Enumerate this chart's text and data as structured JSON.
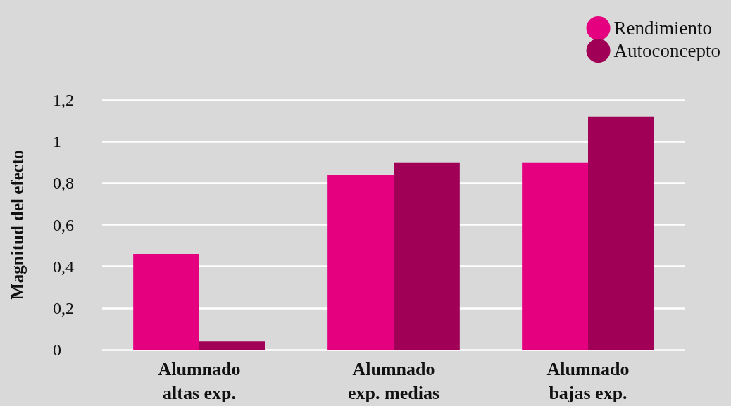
{
  "chart_data": {
    "type": "bar",
    "ylabel": "Magnitud del efecto",
    "categories": [
      "Alumnado\naltas exp.",
      "Alumnado\nexp. medias",
      "Alumnado\nbajas exp."
    ],
    "series": [
      {
        "name": "Rendimiento",
        "color": "#e4007e",
        "values": [
          0.46,
          0.84,
          0.9
        ]
      },
      {
        "name": "Autoconcepto",
        "color": "#a00056",
        "values": [
          0.04,
          0.9,
          1.12
        ]
      }
    ],
    "ylim": [
      0,
      1.2
    ],
    "yticks": [
      {
        "value": 0,
        "label": "0"
      },
      {
        "value": 0.2,
        "label": "0,2"
      },
      {
        "value": 0.4,
        "label": "0,4"
      },
      {
        "value": 0.6,
        "label": "0,6"
      },
      {
        "value": 0.8,
        "label": "0,8"
      },
      {
        "value": 1,
        "label": "1"
      },
      {
        "value": 1.2,
        "label": "1,2"
      }
    ],
    "grid": "y",
    "legend": "top right"
  }
}
